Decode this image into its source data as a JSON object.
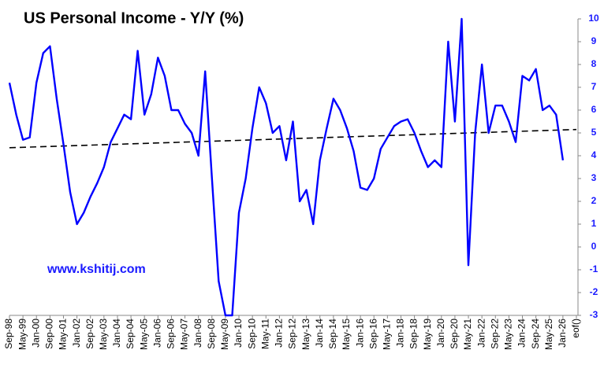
{
  "chart_data": {
    "type": "line",
    "title": "US Personal Income - Y/Y (%)",
    "annotation": "www.kshitij.com",
    "categories": [
      "Sep-98",
      null,
      "May-99",
      null,
      "Jan-00",
      null,
      "Sep-00",
      null,
      "May-01",
      null,
      "Jan-02",
      null,
      "Sep-02",
      null,
      "May-03",
      null,
      "Jan-04",
      null,
      "Sep-04",
      null,
      "May-05",
      null,
      "Jan-06",
      null,
      "Sep-06",
      null,
      "May-07",
      null,
      "Jan-08",
      null,
      "Sep-08",
      null,
      "May-09",
      null,
      "Jan-10",
      null,
      "Sep-10",
      null,
      "May-11",
      null,
      "Jan-12",
      null,
      "Sep-12",
      null,
      "May-13",
      null,
      "Jan-14",
      null,
      "Sep-14",
      null,
      "May-15",
      null,
      "Jan-16",
      null,
      "Sep-16",
      null,
      "May-17",
      null,
      "Jan-18",
      null,
      "Sep-18",
      null,
      "May-19",
      null,
      "Jan-20",
      null,
      "Sep-20",
      null,
      "May-21",
      null,
      "Jan-22",
      null,
      "Sep-22",
      null,
      "May-23",
      null,
      "Jan-24",
      null,
      "Sep-24",
      null,
      "May-25",
      null,
      "Jan-26",
      null,
      "eof()"
    ],
    "series": [
      {
        "color": "#0000ff",
        "values": [
          7.2,
          5.8,
          4.7,
          4.8,
          7.2,
          8.5,
          8.8,
          6.5,
          4.5,
          2.4,
          1.0,
          1.5,
          2.2,
          2.8,
          3.5,
          4.6,
          5.2,
          5.8,
          5.6,
          8.6,
          5.8,
          6.7,
          8.3,
          7.5,
          6.0,
          6.0,
          5.4,
          5.0,
          4.0,
          7.7,
          3.0,
          -1.5,
          -3.0,
          -3.0,
          1.5,
          3.0,
          5.2,
          7.0,
          6.3,
          5.0,
          5.3,
          3.8,
          5.5,
          2.0,
          2.5,
          1.0,
          3.8,
          5.2,
          6.5,
          6.0,
          5.2,
          4.2,
          2.6,
          2.5,
          3.0,
          4.3,
          4.8,
          5.3,
          5.5,
          5.6,
          5.0,
          4.2,
          3.5,
          3.8,
          3.5,
          9.0,
          5.5,
          10,
          -0.8,
          5.0,
          8.0,
          5.0,
          6.2,
          6.2,
          5.5,
          4.6,
          7.5,
          7.3,
          7.8,
          6.0,
          6.2,
          5.8,
          3.8,
          null,
          null
        ]
      }
    ],
    "trend": {
      "color": "#000000",
      "values": [
        4.35,
        5.15
      ]
    },
    "ylim": [
      -3,
      10
    ],
    "yticks": [
      -3,
      -2,
      -1,
      0,
      1,
      2,
      3,
      4,
      5,
      6,
      7,
      8,
      9,
      10
    ],
    "grid": false
  }
}
